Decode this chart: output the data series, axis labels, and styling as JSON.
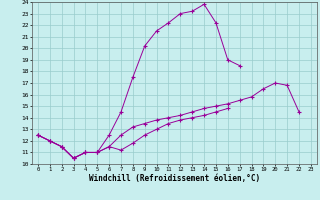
{
  "xlabel": "Windchill (Refroidissement éolien,°C)",
  "bg_color": "#c8eeee",
  "line_color": "#990099",
  "grid_color": "#99cccc",
  "xlim": [
    -0.5,
    23.5
  ],
  "ylim": [
    10,
    24
  ],
  "xticks": [
    0,
    1,
    2,
    3,
    4,
    5,
    6,
    7,
    8,
    9,
    10,
    11,
    12,
    13,
    14,
    15,
    16,
    17,
    18,
    19,
    20,
    21,
    22,
    23
  ],
  "yticks": [
    10,
    11,
    12,
    13,
    14,
    15,
    16,
    17,
    18,
    19,
    20,
    21,
    22,
    23,
    24
  ],
  "series1_x": [
    0,
    1,
    2,
    3,
    4,
    5,
    6,
    7,
    8,
    9,
    10,
    11,
    12,
    13,
    14,
    15,
    16,
    17,
    18,
    19,
    20,
    21,
    22
  ],
  "series1_y": [
    12.5,
    12.0,
    11.5,
    10.5,
    11.0,
    11.0,
    12.5,
    14.5,
    17.5,
    20.2,
    21.5,
    22.2,
    23.0,
    23.2,
    23.8,
    22.2,
    19.0,
    18.5,
    null,
    null,
    null,
    null,
    null
  ],
  "series2_x": [
    0,
    1,
    2,
    3,
    4,
    5,
    6,
    7,
    8,
    9,
    10,
    11,
    12,
    13,
    14,
    15,
    16,
    17,
    18,
    19,
    20,
    21,
    22
  ],
  "series2_y": [
    12.5,
    12.0,
    11.5,
    10.5,
    11.0,
    11.0,
    11.5,
    12.5,
    13.2,
    13.5,
    13.8,
    14.0,
    14.2,
    14.5,
    14.8,
    15.0,
    15.2,
    15.5,
    15.8,
    16.5,
    17.0,
    16.8,
    14.5
  ],
  "series3_x": [
    0,
    1,
    2,
    3,
    4,
    5,
    6,
    7,
    8,
    9,
    10,
    11,
    12,
    13,
    14,
    15,
    16,
    17,
    18,
    19,
    20,
    21,
    22
  ],
  "series3_y": [
    12.5,
    12.0,
    11.5,
    10.5,
    11.0,
    11.0,
    11.5,
    11.2,
    11.8,
    12.5,
    13.0,
    13.5,
    13.8,
    14.0,
    14.2,
    14.5,
    14.8,
    null,
    null,
    null,
    null,
    null,
    null
  ]
}
